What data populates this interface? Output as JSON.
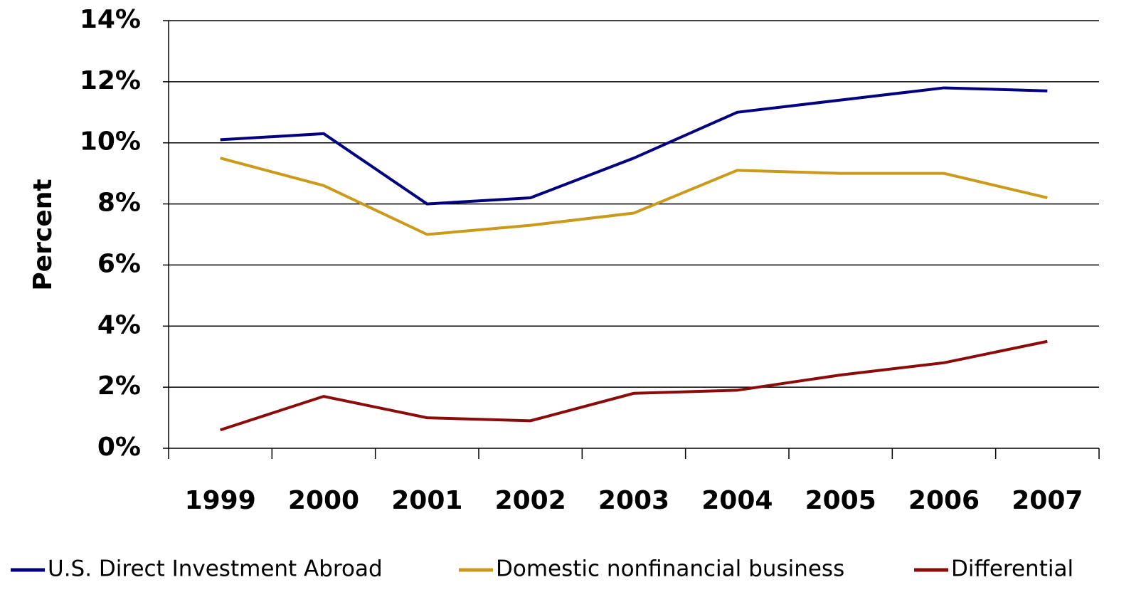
{
  "chart_data": {
    "type": "line",
    "y_label": "Percent",
    "categories": [
      "1999",
      "2000",
      "2001",
      "2002",
      "2003",
      "2004",
      "2005",
      "2006",
      "2007"
    ],
    "series": [
      {
        "name": "U.S. Direct Investment Abroad",
        "color": "#000080",
        "values": [
          10.1,
          10.3,
          8.0,
          8.2,
          9.5,
          11.0,
          11.4,
          11.8,
          11.7
        ]
      },
      {
        "name": "Domestic nonfinancial business",
        "color": "#cc9a1a",
        "values": [
          9.5,
          8.6,
          7.0,
          7.3,
          7.7,
          9.1,
          9.0,
          9.0,
          8.2
        ]
      },
      {
        "name": "Differential",
        "color": "#8b0a0a",
        "values": [
          0.6,
          1.7,
          1.0,
          0.9,
          1.8,
          1.9,
          2.4,
          2.8,
          3.5
        ]
      }
    ],
    "ylim": [
      0,
      14
    ],
    "yticks": [
      {
        "value": 0,
        "label": "0%"
      },
      {
        "value": 2,
        "label": "2%"
      },
      {
        "value": 4,
        "label": "4%"
      },
      {
        "value": 6,
        "label": "6%"
      },
      {
        "value": 8,
        "label": "8%"
      },
      {
        "value": 10,
        "label": "10%"
      },
      {
        "value": 12,
        "label": "12%"
      },
      {
        "value": 14,
        "label": "14%"
      }
    ],
    "grid": true,
    "legend": "bottom"
  }
}
